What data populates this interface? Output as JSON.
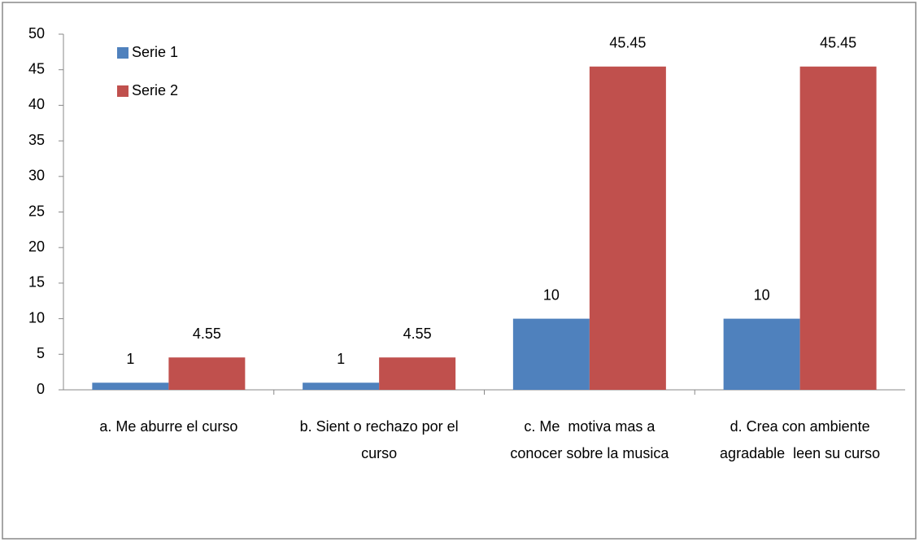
{
  "chart_data": {
    "type": "bar",
    "categories": [
      "a. Me aburre el curso",
      "b. Sient o rechazo por el curso",
      "c. Me  motiva mas a conocer sobre la musica",
      "d. Crea con ambiente agradable  leen su curso"
    ],
    "series": [
      {
        "name": "Serie 1",
        "color": "#4f81bd",
        "values": [
          1,
          1,
          10,
          10
        ]
      },
      {
        "name": "Serie 2",
        "color": "#c0504d",
        "values": [
          4.55,
          4.55,
          45.45,
          45.45
        ]
      }
    ],
    "ylim": [
      0,
      50
    ],
    "yticks": [
      0,
      5,
      10,
      15,
      20,
      25,
      30,
      35,
      40,
      45,
      50
    ],
    "legend": "top-left",
    "grid": false
  }
}
